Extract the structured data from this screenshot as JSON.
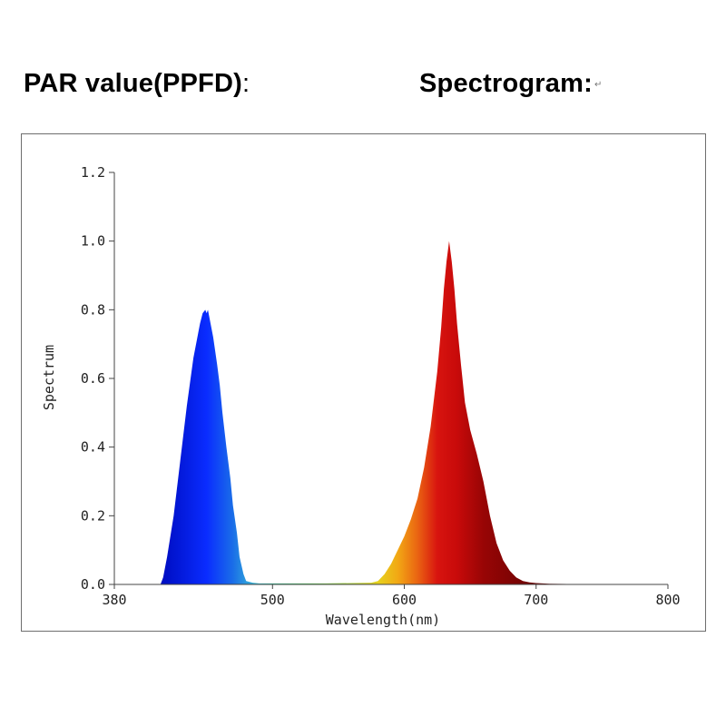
{
  "headings": {
    "par_value": "PAR value(PPFD)",
    "par_colon": ":",
    "spectrogram": "Spectrogram:",
    "return_mark": "↵"
  },
  "chart_data": {
    "type": "area",
    "xlabel": "Wavelength(nm)",
    "ylabel": "Spectrum",
    "xlim": [
      380,
      800
    ],
    "ylim": [
      0,
      1.2
    ],
    "x_ticks": [
      380,
      500,
      600,
      700,
      800
    ],
    "y_ticks": [
      "0.0",
      "0.2",
      "0.4",
      "0.6",
      "0.8",
      "1.0",
      "1.2"
    ],
    "grid": false,
    "legend": "none",
    "series": [
      {
        "x": [
          380,
          415,
          417,
          420,
          425,
          430,
          435,
          440,
          443,
          445,
          447,
          449,
          450,
          451,
          452,
          453,
          455,
          458,
          460,
          462,
          465,
          468,
          470,
          473,
          475,
          478,
          480,
          485,
          490,
          500,
          520,
          540,
          560,
          575,
          580,
          585,
          590,
          595,
          600,
          605,
          610,
          615,
          620,
          625,
          628,
          630,
          632,
          633,
          634,
          636,
          638,
          640,
          643,
          646,
          650,
          655,
          660,
          665,
          670,
          675,
          680,
          685,
          690,
          695,
          700,
          705,
          710,
          730,
          760,
          800
        ],
        "y": [
          0.0,
          0.0,
          0.02,
          0.08,
          0.2,
          0.36,
          0.52,
          0.66,
          0.72,
          0.76,
          0.79,
          0.8,
          0.79,
          0.8,
          0.78,
          0.76,
          0.72,
          0.64,
          0.58,
          0.5,
          0.4,
          0.31,
          0.23,
          0.15,
          0.08,
          0.03,
          0.01,
          0.005,
          0.003,
          0.003,
          0.003,
          0.003,
          0.004,
          0.005,
          0.01,
          0.03,
          0.06,
          0.1,
          0.14,
          0.19,
          0.25,
          0.34,
          0.46,
          0.62,
          0.75,
          0.86,
          0.94,
          0.97,
          1.0,
          0.94,
          0.86,
          0.76,
          0.64,
          0.53,
          0.45,
          0.38,
          0.3,
          0.2,
          0.12,
          0.07,
          0.04,
          0.02,
          0.01,
          0.006,
          0.004,
          0.003,
          0.002,
          0.001,
          0.0,
          0.0
        ]
      }
    ]
  }
}
